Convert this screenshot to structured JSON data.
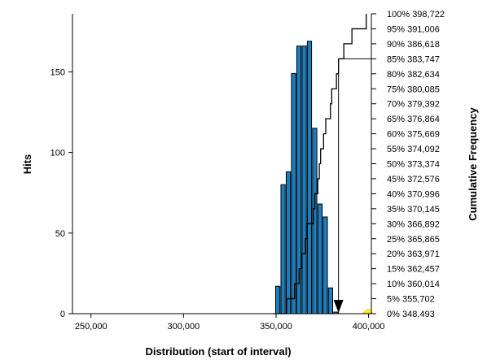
{
  "chart_data": {
    "type": "bar",
    "title": "",
    "xlabel": "Distribution (start of interval)",
    "ylabel": "Hits",
    "y2label": "Cumulative Frequency",
    "xlim": [
      240000,
      401500
    ],
    "ylim": [
      0,
      186
    ],
    "x_ticks": [
      {
        "value": 250000,
        "label": "250,000"
      },
      {
        "value": 300000,
        "label": "300,000"
      },
      {
        "value": 350000,
        "label": "350,000"
      },
      {
        "value": 400000,
        "label": "400,000"
      }
    ],
    "y_ticks": [
      {
        "value": 0,
        "label": "0"
      },
      {
        "value": 50,
        "label": "50"
      },
      {
        "value": 100,
        "label": "100"
      },
      {
        "value": 150,
        "label": "150"
      }
    ],
    "bar_color": "#1a7fc1",
    "bar_width": 2300,
    "bars": [
      {
        "x": 349800,
        "value": 17
      },
      {
        "x": 352650,
        "value": 80
      },
      {
        "x": 355500,
        "value": 88
      },
      {
        "x": 358350,
        "value": 149
      },
      {
        "x": 361200,
        "value": 166
      },
      {
        "x": 364050,
        "value": 166
      },
      {
        "x": 366900,
        "value": 169
      },
      {
        "x": 369750,
        "value": 115
      },
      {
        "x": 372600,
        "value": 68
      },
      {
        "x": 375450,
        "value": 60
      },
      {
        "x": 378300,
        "value": 16
      },
      {
        "x": 381150,
        "value": 1
      }
    ],
    "cumulative": [
      {
        "pct": 0,
        "value": 348493,
        "label": "0%  348,493"
      },
      {
        "pct": 5,
        "value": 355702,
        "label": "5%  355,702"
      },
      {
        "pct": 10,
        "value": 360014,
        "label": "10%  360,014"
      },
      {
        "pct": 15,
        "value": 362457,
        "label": "15%  362,457"
      },
      {
        "pct": 20,
        "value": 363971,
        "label": "20%  363,971"
      },
      {
        "pct": 25,
        "value": 365865,
        "label": "25%  365,865"
      },
      {
        "pct": 30,
        "value": 366892,
        "label": "30%  366,892"
      },
      {
        "pct": 35,
        "value": 370145,
        "label": "35%  370,145"
      },
      {
        "pct": 40,
        "value": 370996,
        "label": "40%  370,996"
      },
      {
        "pct": 45,
        "value": 372576,
        "label": "45%  372,576"
      },
      {
        "pct": 50,
        "value": 373374,
        "label": "50%  373,374"
      },
      {
        "pct": 55,
        "value": 374092,
        "label": "55%  374,092"
      },
      {
        "pct": 60,
        "value": 375669,
        "label": "60%  375,669"
      },
      {
        "pct": 65,
        "value": 376864,
        "label": "65%  376,864"
      },
      {
        "pct": 70,
        "value": 379392,
        "label": "70%  379,392"
      },
      {
        "pct": 75,
        "value": 380085,
        "label": "75%  380,085"
      },
      {
        "pct": 80,
        "value": 382634,
        "label": "80%  382,634"
      },
      {
        "pct": 85,
        "value": 383747,
        "label": "85%  383,747"
      },
      {
        "pct": 90,
        "value": 386618,
        "label": "90%  386,618"
      },
      {
        "pct": 95,
        "value": 391006,
        "label": "95%  391,006"
      },
      {
        "pct": 100,
        "value": 398722,
        "label": "100%  398,722"
      }
    ],
    "highlight": {
      "pct": 85,
      "value": 383747
    },
    "marker_arrow_value": 383747,
    "yellow_marker_value": 399500,
    "grid": false
  }
}
